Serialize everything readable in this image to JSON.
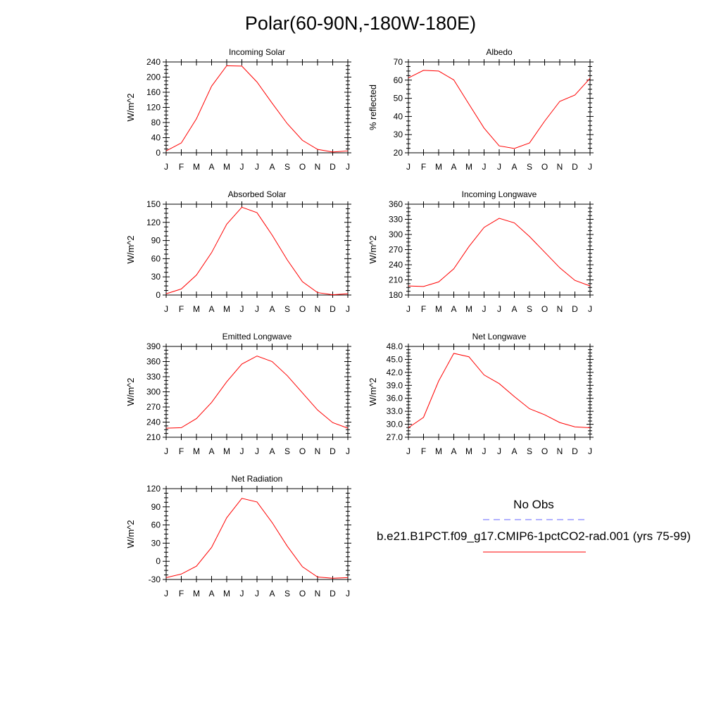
{
  "page": {
    "title": "Polar(60-90N,-180W-180E)"
  },
  "legend": {
    "obs_label": "No Obs",
    "obs_color": "#6666ff",
    "model_label": "b.e21.B1PCT.f09_g17.CMIP6-1pctCO2-rad.001 (yrs 75-99)",
    "model_color": "#ff0000"
  },
  "chart_data": [
    {
      "type": "line",
      "title": "Incoming Solar",
      "ylabel": "W/m^2",
      "categories": [
        "J",
        "F",
        "M",
        "A",
        "M",
        "J",
        "J",
        "A",
        "S",
        "O",
        "N",
        "D",
        "J"
      ],
      "yticks": [
        "0",
        "40",
        "80",
        "120",
        "160",
        "200",
        "240"
      ],
      "ylim": [
        0,
        240
      ],
      "series": [
        {
          "color": "#ff0000",
          "values": [
            5,
            26,
            90,
            176,
            230,
            229,
            187,
            131,
            77,
            33,
            9,
            2,
            5
          ]
        }
      ]
    },
    {
      "type": "line",
      "title": "Albedo",
      "ylabel": "% reflected",
      "categories": [
        "J",
        "F",
        "M",
        "A",
        "M",
        "J",
        "J",
        "A",
        "S",
        "O",
        "N",
        "D",
        "J"
      ],
      "yticks": [
        "20",
        "30",
        "40",
        "50",
        "60",
        "70"
      ],
      "ylim": [
        20,
        70
      ],
      "series": [
        {
          "color": "#ff0000",
          "values": [
            61.2,
            65.4,
            65.0,
            60.1,
            46.8,
            33.6,
            23.8,
            22.4,
            25.4,
            37.4,
            48.3,
            51.8,
            61.0
          ]
        }
      ]
    },
    {
      "type": "line",
      "title": "Absorbed Solar",
      "ylabel": "W/m^2",
      "categories": [
        "J",
        "F",
        "M",
        "A",
        "M",
        "J",
        "J",
        "A",
        "S",
        "O",
        "N",
        "D",
        "J"
      ],
      "yticks": [
        "0",
        "30",
        "60",
        "90",
        "120",
        "150"
      ],
      "ylim": [
        0,
        150
      ],
      "series": [
        {
          "color": "#ff0000",
          "values": [
            2,
            10,
            33,
            70,
            117,
            145,
            136,
            99,
            58,
            22,
            4,
            0.5,
            2
          ]
        }
      ]
    },
    {
      "type": "line",
      "title": "Incoming Longwave",
      "ylabel": "W/m^2",
      "categories": [
        "J",
        "F",
        "M",
        "A",
        "M",
        "J",
        "J",
        "A",
        "S",
        "O",
        "N",
        "D",
        "J"
      ],
      "yticks": [
        "180",
        "210",
        "240",
        "270",
        "300",
        "330",
        "360"
      ],
      "ylim": [
        180,
        360
      ],
      "series": [
        {
          "color": "#ff0000",
          "values": [
            198,
            197,
            206,
            232,
            276,
            314,
            332,
            323,
            296,
            265,
            234,
            209,
            198
          ]
        }
      ]
    },
    {
      "type": "line",
      "title": "Emitted Longwave",
      "ylabel": "W/m^2",
      "categories": [
        "J",
        "F",
        "M",
        "A",
        "M",
        "J",
        "J",
        "A",
        "S",
        "O",
        "N",
        "D",
        "J"
      ],
      "yticks": [
        "210",
        "240",
        "270",
        "300",
        "330",
        "360",
        "390"
      ],
      "ylim": [
        210,
        390
      ],
      "series": [
        {
          "color": "#ff0000",
          "values": [
            228,
            229,
            247,
            279,
            320,
            355,
            371,
            360,
            332,
            298,
            264,
            239,
            228
          ]
        }
      ]
    },
    {
      "type": "line",
      "title": "Net Longwave",
      "ylabel": "W/m^2",
      "categories": [
        "J",
        "F",
        "M",
        "A",
        "M",
        "J",
        "J",
        "A",
        "S",
        "O",
        "N",
        "D",
        "J"
      ],
      "yticks": [
        "27.0",
        "30.0",
        "33.0",
        "36.0",
        "39.0",
        "42.0",
        "45.0",
        "48.0"
      ],
      "ylim": [
        27,
        48
      ],
      "series": [
        {
          "color": "#ff0000",
          "values": [
            29.2,
            31.6,
            40.0,
            46.4,
            45.6,
            41.4,
            39.4,
            36.4,
            33.6,
            32.2,
            30.4,
            29.4,
            29.2
          ]
        }
      ]
    },
    {
      "type": "line",
      "title": "Net Radiation",
      "ylabel": "W/m^2",
      "categories": [
        "J",
        "F",
        "M",
        "A",
        "M",
        "J",
        "J",
        "A",
        "S",
        "O",
        "N",
        "D",
        "J"
      ],
      "yticks": [
        "-30",
        "0",
        "30",
        "60",
        "90",
        "120"
      ],
      "ylim": [
        -30,
        120
      ],
      "series": [
        {
          "color": "#ff0000",
          "values": [
            -27,
            -21,
            -8,
            23,
            72,
            104,
            98,
            64,
            25,
            -9,
            -26,
            -28,
            -27
          ]
        }
      ]
    }
  ]
}
